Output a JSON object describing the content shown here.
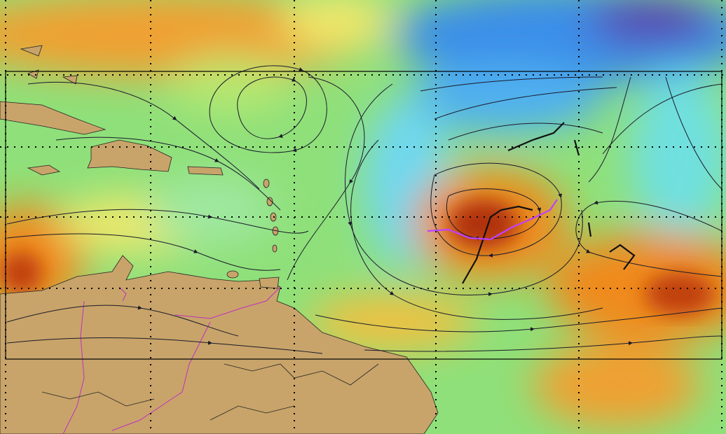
{
  "map": {
    "colors": {
      "base": "#8fe07a",
      "warm": "#f08a1a",
      "hot": "#b0300a",
      "yellow": "#f2e86a",
      "cyan": "#6fe0e0",
      "blue": "#3a8ee8",
      "deep_blue": "#5a3aa8",
      "land": "#c8a46a",
      "streamline": "#1a1a2a",
      "border": "#c030c0",
      "track": "#c040ff"
    },
    "layers": [
      "moisture-field",
      "land",
      "political-borders",
      "streamlines",
      "lat-lon-grid",
      "analysis-box",
      "trough-axes",
      "storm-track"
    ]
  }
}
